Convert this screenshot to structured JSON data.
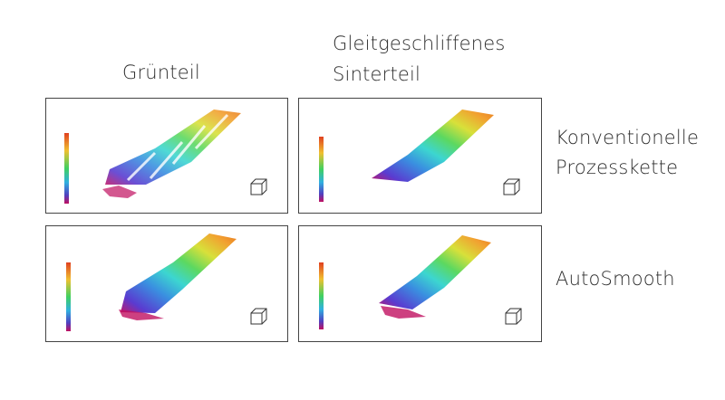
{
  "columns": [
    [
      "Grünteil"
    ],
    [
      "Gleitgeschliffenes",
      "Sinterteil"
    ]
  ],
  "rows": [
    [
      "Konventionelle",
      "Prozesskette"
    ],
    [
      "AutoSmooth"
    ]
  ]
}
